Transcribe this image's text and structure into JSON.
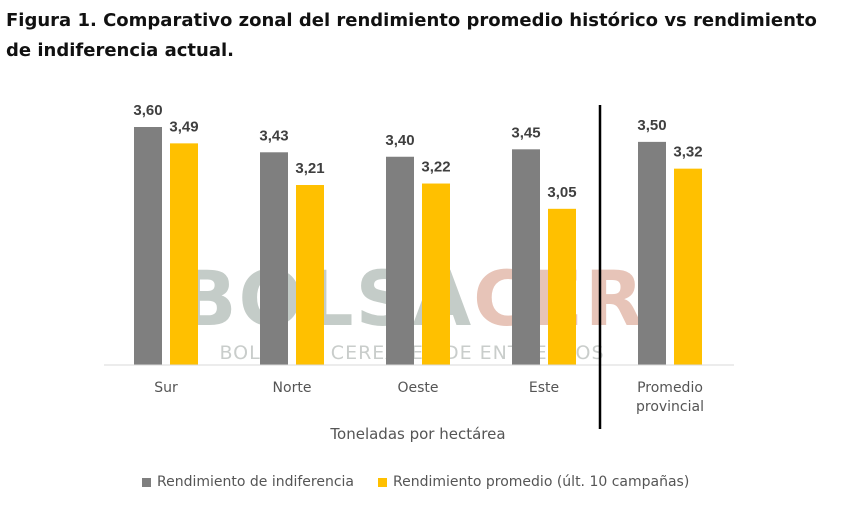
{
  "title": "Figura 1. Comparativo zonal del rendimiento promedio histórico vs rendimiento de indiferencia actual.",
  "watermark": {
    "brand": "BOLSACER",
    "brand_part1": "BOLSA",
    "brand_part2": "CER",
    "tagline": "BOLSA DE CEREALES DE ENTRE RÍOS"
  },
  "chart_data": {
    "type": "bar",
    "categories": [
      "Sur",
      "Norte",
      "Oeste",
      "Este",
      "Promedio provincial"
    ],
    "category_lines": [
      [
        "Sur"
      ],
      [
        "Norte"
      ],
      [
        "Oeste"
      ],
      [
        "Este"
      ],
      [
        "Promedio",
        "provincial"
      ]
    ],
    "series": [
      {
        "name": "Rendimiento de indiferencia",
        "color": "#7f7f7f",
        "values": [
          3.6,
          3.43,
          3.4,
          3.45,
          3.5
        ],
        "labels": [
          "3,60",
          "3,43",
          "3,40",
          "3,45",
          "3,50"
        ]
      },
      {
        "name": "Rendimiento promedio (últ. 10 campañas)",
        "color": "#ffc000",
        "values": [
          3.49,
          3.21,
          3.22,
          3.05,
          3.32
        ],
        "labels": [
          "3,49",
          "3,21",
          "3,22",
          "3,05",
          "3,32"
        ]
      }
    ],
    "xlabel": "Toneladas por hectárea",
    "ylabel": "",
    "ylim": [
      2.0,
      3.68
    ],
    "grid": false,
    "legend_position": "bottom",
    "separator_after_category": 3
  }
}
